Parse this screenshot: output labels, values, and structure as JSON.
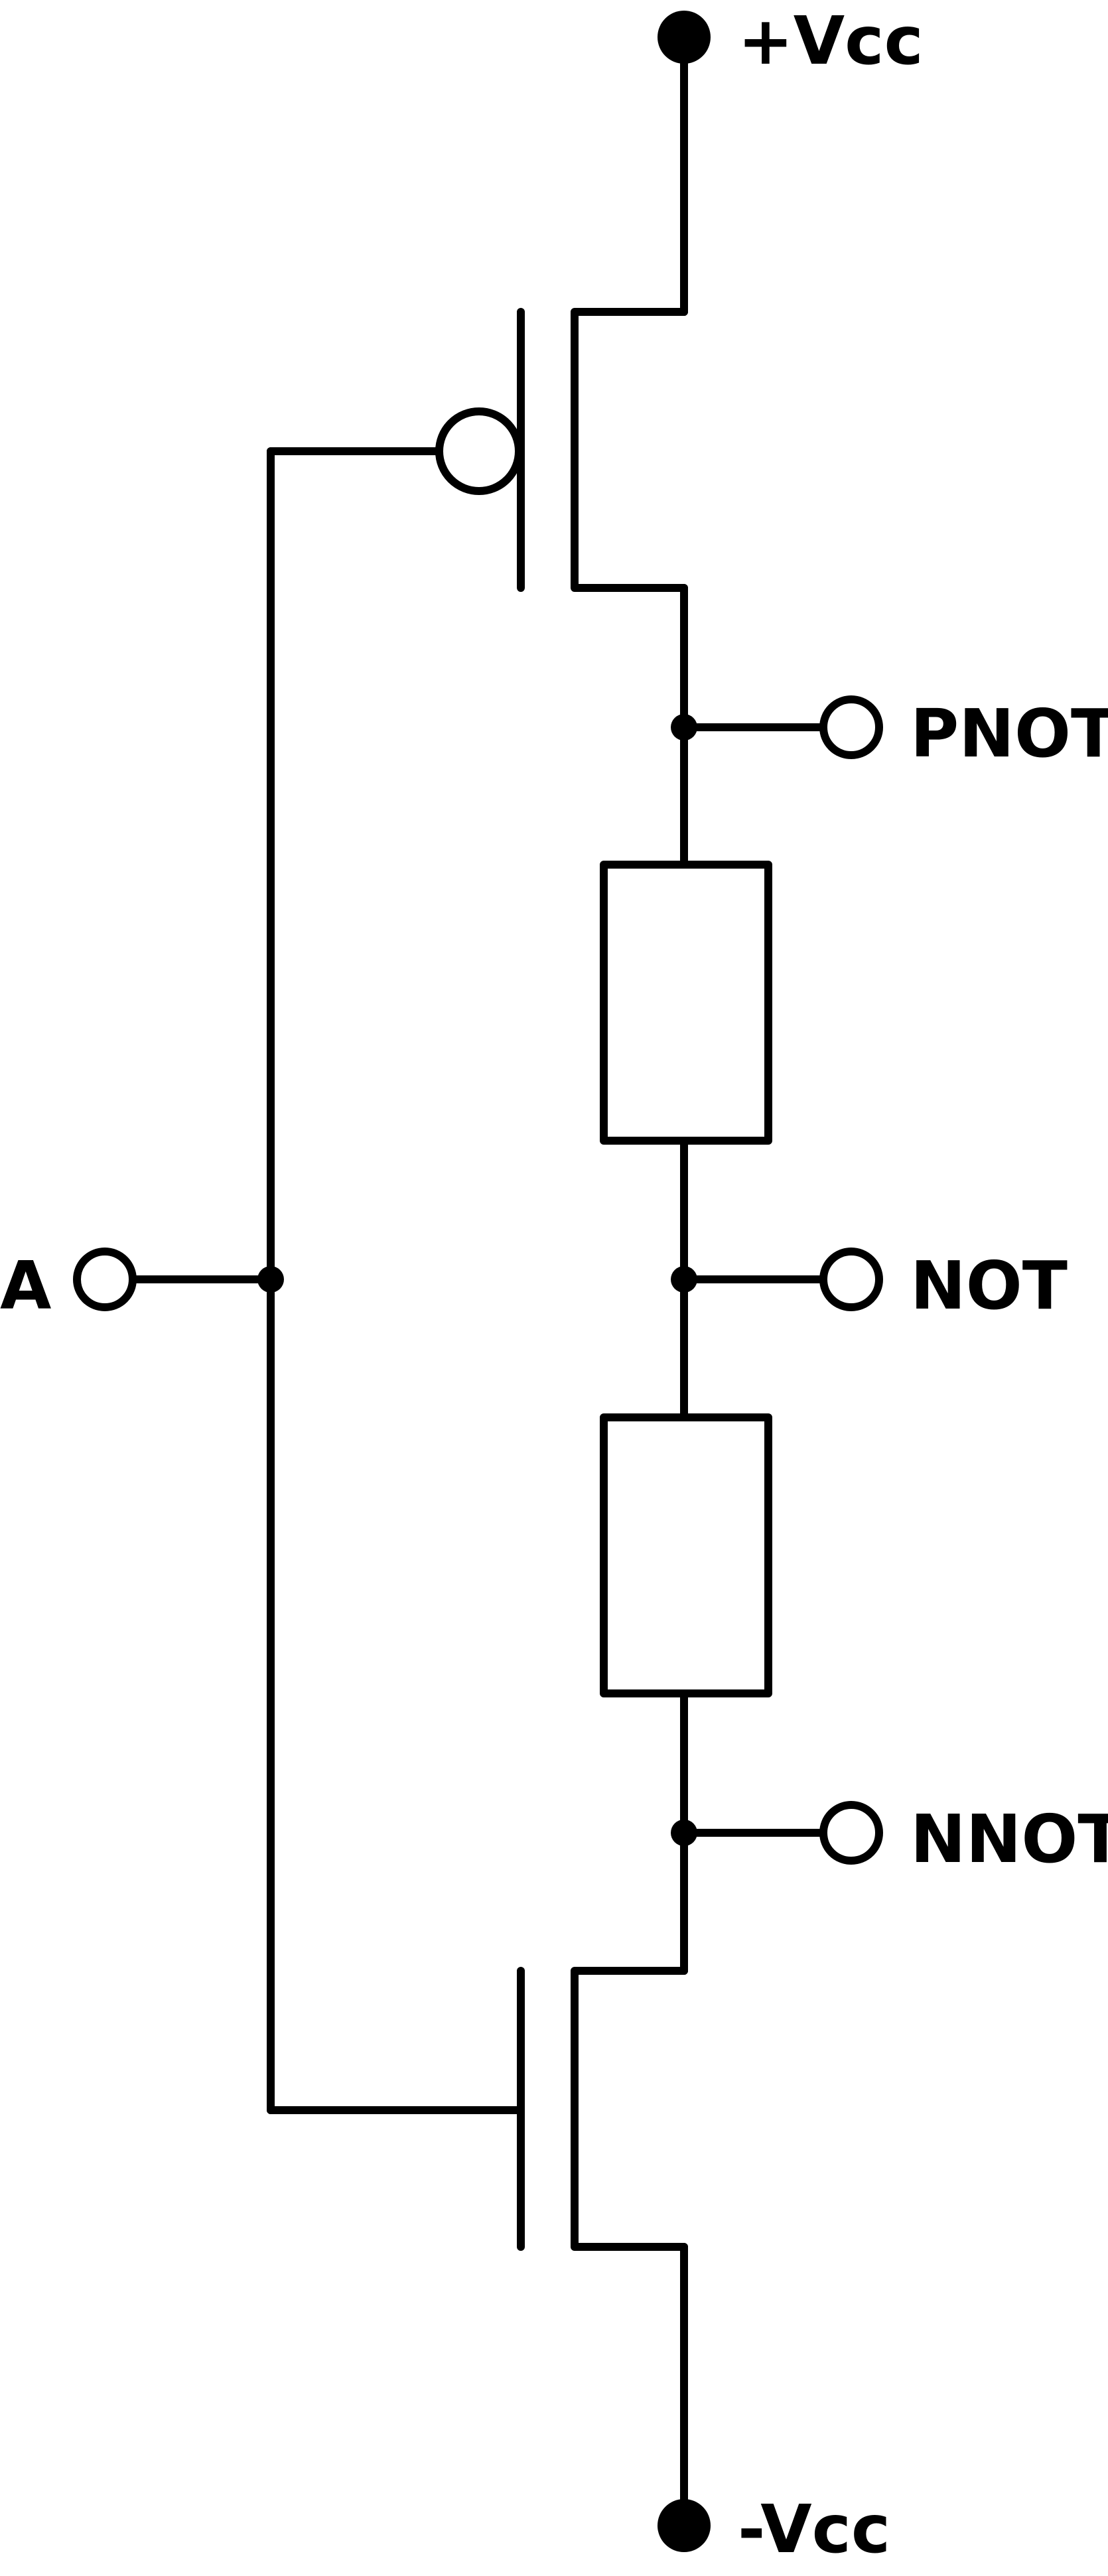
{
  "labels": {
    "vcc_pos": "+Vcc",
    "vcc_neg": "-Vcc",
    "input": "A",
    "pnot": "PNOT",
    "not": "NOT",
    "nnot": "NNOT"
  },
  "colors": {
    "stroke": "#000000",
    "background": "#ffffff"
  }
}
